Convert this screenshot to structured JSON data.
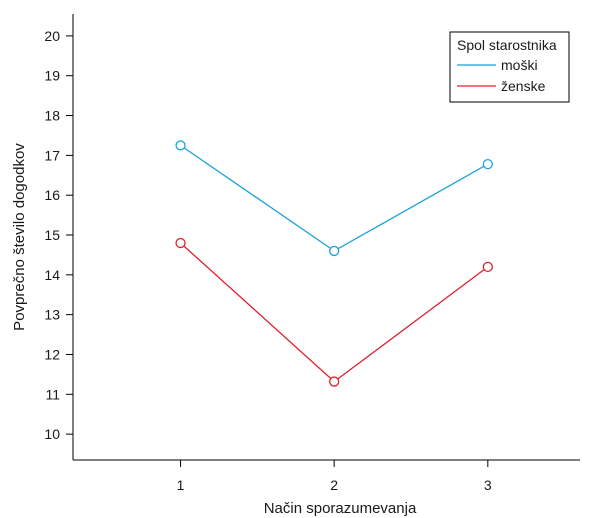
{
  "chart_data": {
    "type": "line",
    "title": "",
    "xlabel": "Način sporazumevanja",
    "ylabel": "Povprečno število dogodkov",
    "x": [
      1,
      2,
      3
    ],
    "x_tick_labels": [
      "1",
      "2",
      "3"
    ],
    "xlim": [
      0.3,
      3.6
    ],
    "ylim": [
      9.35,
      20.55
    ],
    "y_ticks": [
      10,
      11,
      12,
      13,
      14,
      15,
      16,
      17,
      18,
      19,
      20
    ],
    "y_tick_labels": [
      "10",
      "11",
      "12",
      "13",
      "14",
      "15",
      "16",
      "17",
      "18",
      "19",
      "20"
    ],
    "grid": false,
    "legend": {
      "title": "Spol starostnika",
      "placement": "top-right"
    },
    "series": [
      {
        "name": "moški",
        "color": "#1aa3d9",
        "values": [
          17.25,
          14.6,
          16.78
        ]
      },
      {
        "name": "ženske",
        "color": "#e0202a",
        "values": [
          14.8,
          11.32,
          14.2
        ]
      }
    ]
  }
}
